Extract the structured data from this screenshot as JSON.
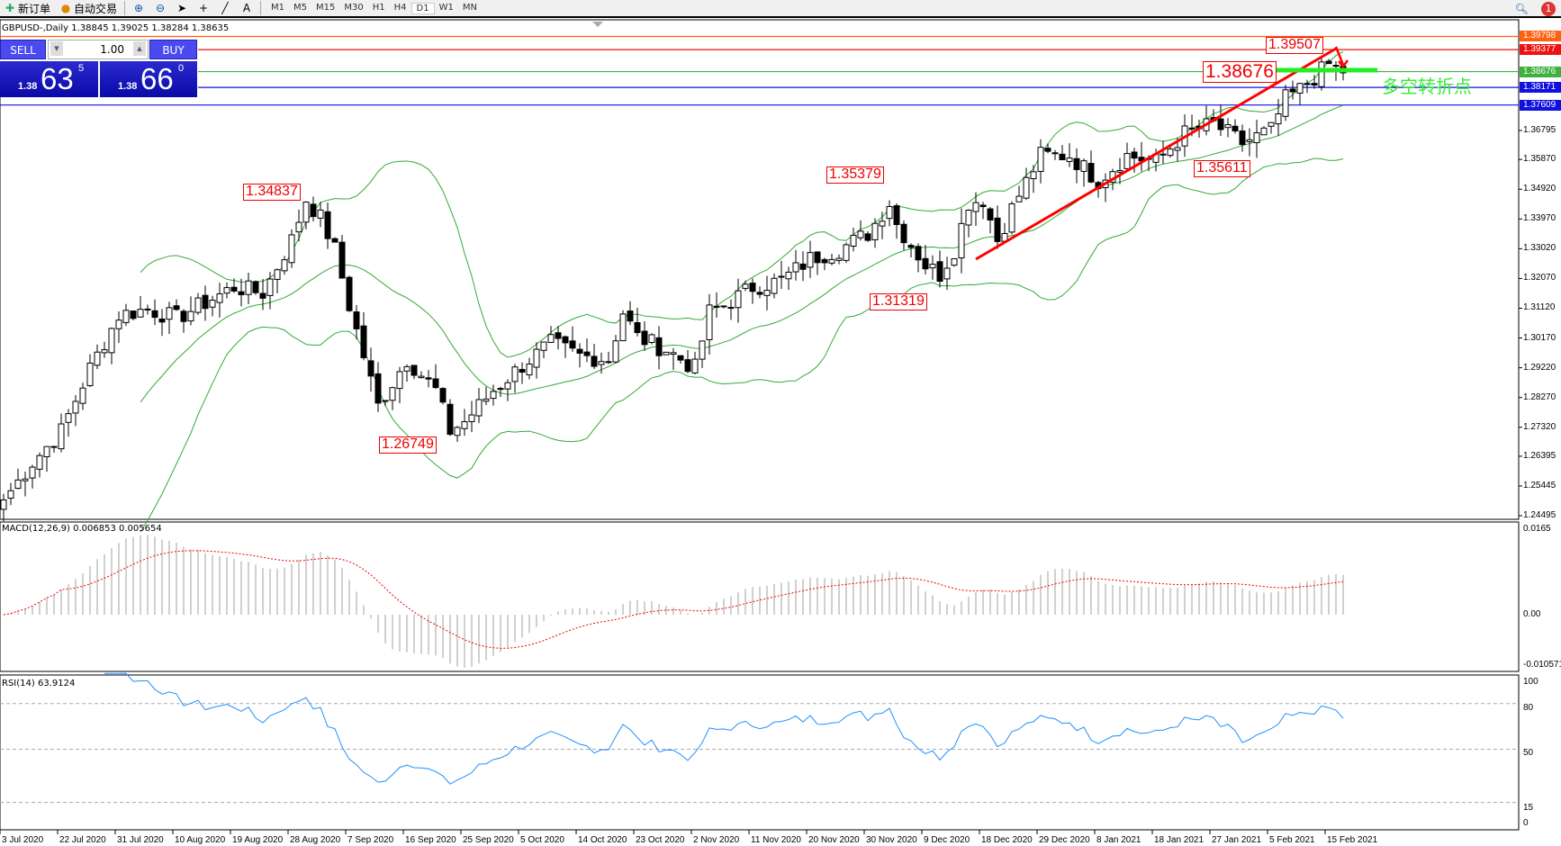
{
  "toolbar": {
    "new_order": "新订单",
    "auto_trade": "自动交易",
    "timeframes": [
      "M1",
      "M5",
      "M15",
      "M30",
      "H1",
      "H4",
      "D1",
      "W1",
      "MN"
    ],
    "active_timeframe": "D1",
    "notification_count": "1"
  },
  "chart_header": {
    "title": "GBPUSD-,Daily  1.38845 1.39025 1.38284 1.38635"
  },
  "trade_panel": {
    "sell_label": "SELL",
    "buy_label": "BUY",
    "lot": "1.00",
    "sell": {
      "small": "1.38",
      "big": "63",
      "pip": "5"
    },
    "buy": {
      "small": "1.38",
      "big": "66",
      "pip": "0"
    }
  },
  "price_axis": [
    "1.36795",
    "1.35870",
    "1.34920",
    "1.33970",
    "1.33020",
    "1.32070",
    "1.31120",
    "1.30170",
    "1.29220",
    "1.28270",
    "1.27320",
    "1.26395",
    "1.25445",
    "1.24495"
  ],
  "horizontal_lines": [
    {
      "price": "1.39798",
      "color": "#ff6010"
    },
    {
      "price": "1.39377",
      "color": "#ee1111"
    },
    {
      "price": "1.38676",
      "color": "#40b040"
    },
    {
      "price": "1.38171",
      "color": "#1010e0"
    },
    {
      "price": "1.37609",
      "color": "#1010e0"
    }
  ],
  "annotations": {
    "a1": "1.34837",
    "a2": "1.26749",
    "a3": "1.35379",
    "a4": "1.31319",
    "a5": "1.35611",
    "a6": "1.39507",
    "a7": "1.38676",
    "turning_point": "多空转折点"
  },
  "macd": {
    "label": "MACD(12,26,9) 0.006853 0.005654",
    "axis": [
      "0.0165",
      "0.00",
      "-0.010571"
    ]
  },
  "rsi": {
    "label": "RSI(14) 63.9124",
    "axis": [
      "100",
      "80",
      "50",
      "15",
      "0"
    ]
  },
  "date_axis": [
    "3 Jul 2020",
    "22 Jul 2020",
    "31 Jul 2020",
    "10 Aug 2020",
    "19 Aug 2020",
    "28 Aug 2020",
    "7 Sep 2020",
    "16 Sep 2020",
    "25 Sep 2020",
    "5 Oct 2020",
    "14 Oct 2020",
    "23 Oct 2020",
    "2 Nov 2020",
    "11 Nov 2020",
    "20 Nov 2020",
    "30 Nov 2020",
    "9 Dec 2020",
    "18 Dec 2020",
    "29 Dec 2020",
    "8 Jan 2021",
    "18 Jan 2021",
    "27 Jan 2021",
    "5 Feb 2021",
    "15 Feb 2021"
  ],
  "chart_data": {
    "type": "candlestick",
    "symbol": "GBPUSD",
    "timeframe": "Daily",
    "ylim": [
      1.24495,
      1.39798
    ],
    "close_keypoints": [
      [
        0,
        1.25
      ],
      [
        4,
        1.262
      ],
      [
        8,
        1.272
      ],
      [
        12,
        1.292
      ],
      [
        16,
        1.309
      ],
      [
        20,
        1.311
      ],
      [
        24,
        1.308
      ],
      [
        28,
        1.313
      ],
      [
        32,
        1.318
      ],
      [
        36,
        1.316
      ],
      [
        40,
        1.333
      ],
      [
        42,
        1.346
      ],
      [
        44,
        1.34
      ],
      [
        46,
        1.33
      ],
      [
        48,
        1.312
      ],
      [
        52,
        1.28
      ],
      [
        56,
        1.295
      ],
      [
        60,
        1.285
      ],
      [
        62,
        1.272
      ],
      [
        64,
        1.275
      ],
      [
        68,
        1.285
      ],
      [
        72,
        1.293
      ],
      [
        76,
        1.3
      ],
      [
        80,
        1.296
      ],
      [
        84,
        1.295
      ],
      [
        86,
        1.31
      ],
      [
        88,
        1.302
      ],
      [
        92,
        1.298
      ],
      [
        96,
        1.292
      ],
      [
        98,
        1.31
      ],
      [
        100,
        1.312
      ],
      [
        104,
        1.318
      ],
      [
        108,
        1.32
      ],
      [
        112,
        1.327
      ],
      [
        116,
        1.33
      ],
      [
        120,
        1.335
      ],
      [
        123,
        1.345
      ],
      [
        124,
        1.338
      ],
      [
        128,
        1.325
      ],
      [
        130,
        1.322
      ],
      [
        132,
        1.33
      ],
      [
        134,
        1.345
      ],
      [
        136,
        1.346
      ],
      [
        138,
        1.333
      ],
      [
        140,
        1.343
      ],
      [
        144,
        1.36
      ],
      [
        148,
        1.36
      ],
      [
        152,
        1.352
      ],
      [
        156,
        1.36
      ],
      [
        160,
        1.358
      ],
      [
        164,
        1.367
      ],
      [
        168,
        1.37
      ],
      [
        172,
        1.364
      ],
      [
        176,
        1.368
      ],
      [
        178,
        1.378
      ],
      [
        180,
        1.381
      ],
      [
        184,
        1.389
      ],
      [
        186,
        1.38635
      ]
    ],
    "indicators": [
      "Bollinger Bands(20,2)",
      "MACD(12,26,9)",
      "RSI(14)"
    ]
  }
}
